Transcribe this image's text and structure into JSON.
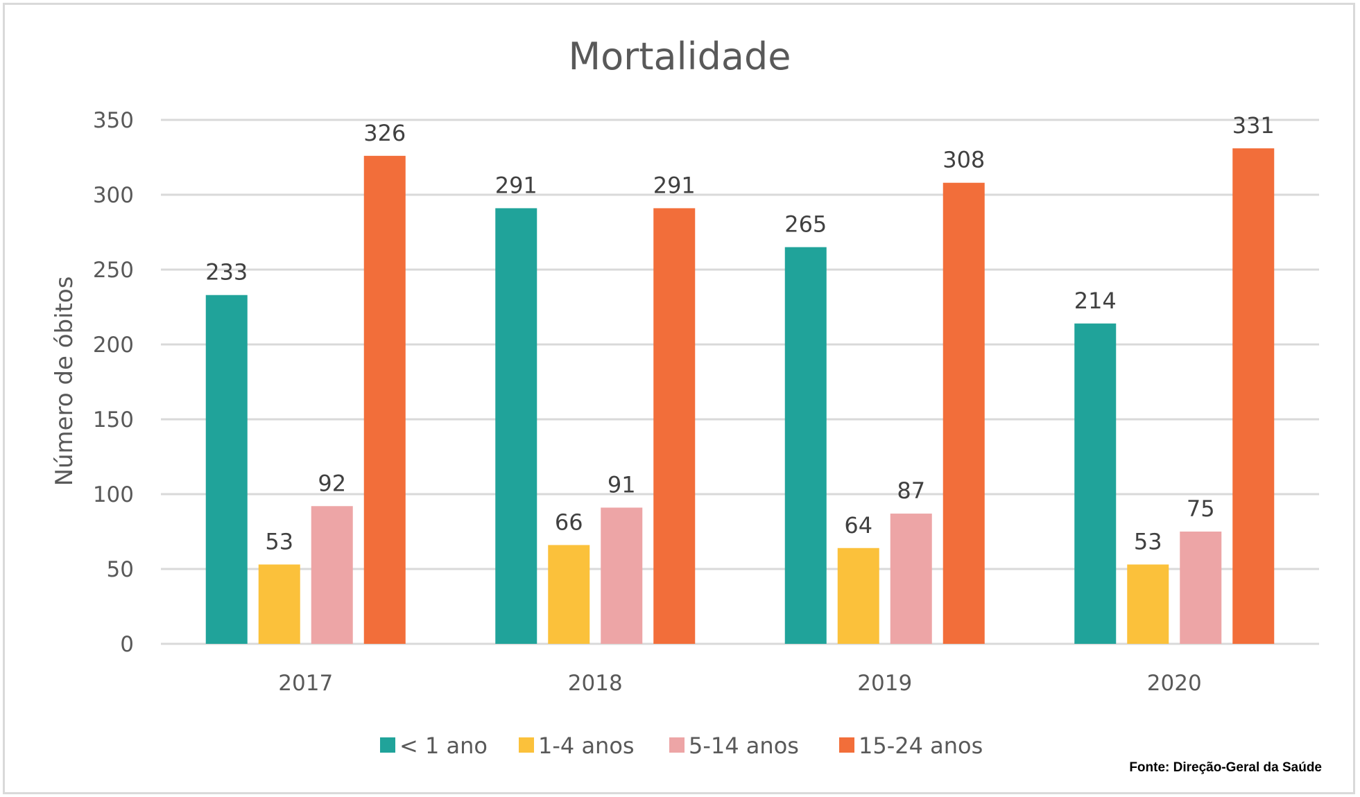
{
  "chart_data": {
    "type": "bar",
    "title": "Mortalidade",
    "xlabel": "",
    "ylabel": "Número de óbitos",
    "ylim": [
      0,
      350
    ],
    "yticks": [
      0,
      50,
      100,
      150,
      200,
      250,
      300,
      350
    ],
    "grid": true,
    "legend_position": "bottom",
    "categories": [
      "2017",
      "2018",
      "2019",
      "2020"
    ],
    "series": [
      {
        "name": "< 1 ano",
        "color": "#20a39a",
        "values": [
          233,
          291,
          265,
          214
        ]
      },
      {
        "name": "1-4 anos",
        "color": "#fbc13b",
        "values": [
          53,
          66,
          64,
          53
        ]
      },
      {
        "name": "5-14 anos",
        "color": "#eda5a6",
        "values": [
          92,
          91,
          87,
          75
        ]
      },
      {
        "name": "15-24 anos",
        "color": "#f26e3a",
        "values": [
          326,
          291,
          308,
          331
        ]
      }
    ],
    "source": "Fonte: Direção-Geral da Saúde"
  }
}
